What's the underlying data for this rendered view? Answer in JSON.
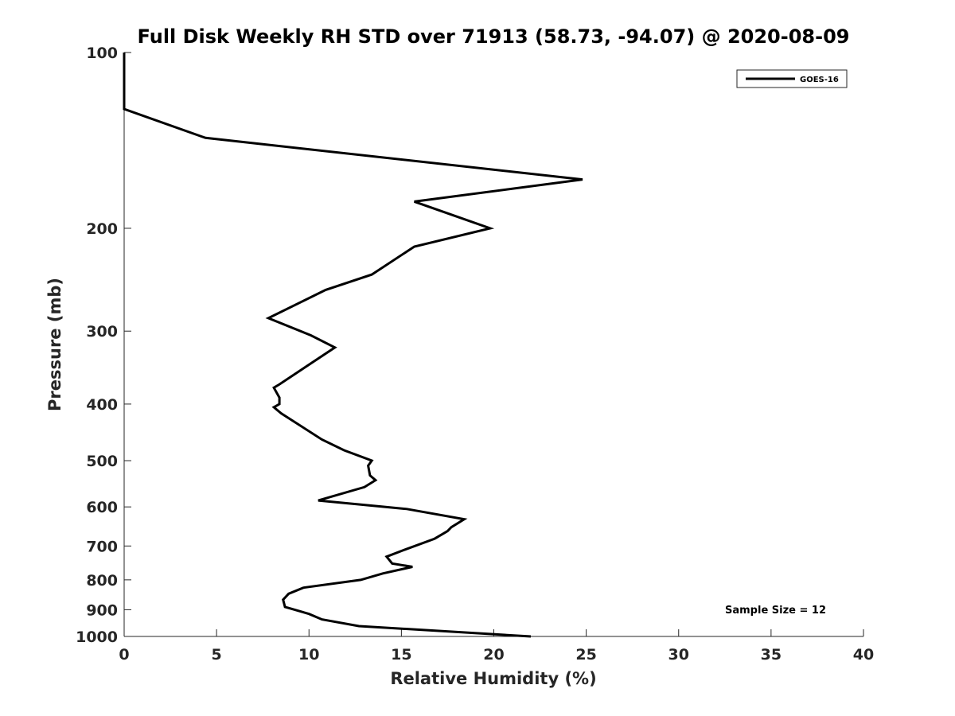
{
  "chart_data": {
    "type": "line",
    "title": "Full Disk Weekly RH STD over 71913 (58.73, -94.07) @ 2020-08-09",
    "xlabel": "Relative Humidity (%)",
    "ylabel": "Pressure (mb)",
    "xlim": [
      0,
      40
    ],
    "ylim": [
      100,
      1000
    ],
    "yscale": "log",
    "y_reversed": true,
    "xticks": [
      "0",
      "5",
      "10",
      "15",
      "20",
      "25",
      "30",
      "35",
      "40"
    ],
    "yticks": [
      "100",
      "200",
      "300",
      "400",
      "500",
      "600",
      "700",
      "800",
      "900",
      "1000"
    ],
    "grid": false,
    "legend_position": "top-right",
    "annotation": "Sample Size = 12",
    "series": [
      {
        "name": "GOES-16",
        "color": "#000000",
        "x": [
          0.0,
          0.0,
          0.0,
          4.4,
          24.8,
          15.7,
          19.8,
          15.7,
          13.4,
          10.9,
          7.8,
          10.1,
          11.4,
          8.4,
          8.1,
          8.4,
          8.4,
          8.1,
          8.5,
          10.7,
          11.9,
          13.4,
          13.2,
          13.3,
          13.6,
          13.0,
          10.5,
          15.3,
          18.4,
          17.7,
          17.5,
          16.8,
          15.2,
          14.2,
          14.5,
          15.6,
          14.0,
          12.8,
          9.7,
          8.9,
          8.6,
          8.7,
          10.0,
          10.7,
          12.7,
          22.0
        ],
        "y": [
          100,
          110,
          125,
          140,
          165,
          180,
          200,
          215,
          240,
          255,
          285,
          305,
          320,
          370,
          375,
          390,
          400,
          405,
          415,
          460,
          480,
          500,
          510,
          530,
          540,
          555,
          585,
          605,
          630,
          650,
          660,
          680,
          710,
          730,
          750,
          760,
          780,
          800,
          825,
          845,
          865,
          890,
          915,
          935,
          960,
          1000
        ]
      }
    ]
  }
}
